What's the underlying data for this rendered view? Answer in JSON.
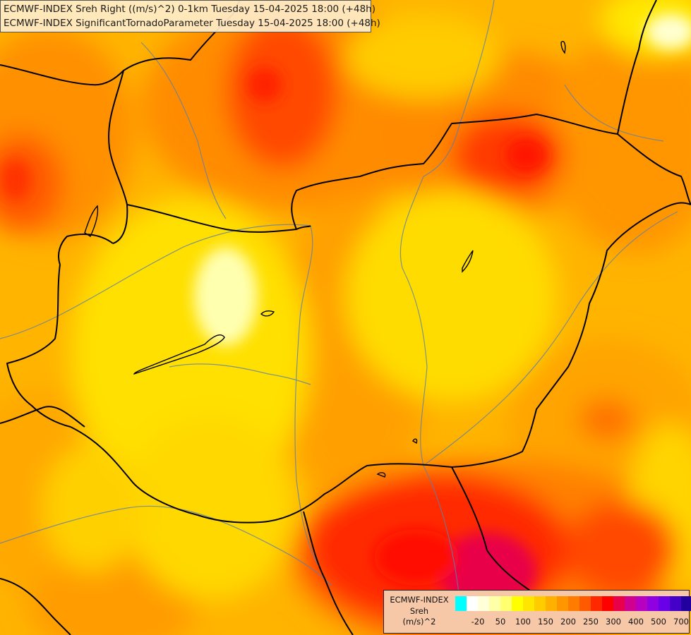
{
  "titles": {
    "line1": "ECMWF-INDEX Sreh Right ((m/s)^2) 0-1km Tuesday 15-04-2025 18:00 (+48h)",
    "line2": "ECMWF-INDEX SignificantTornadoParameter Tuesday 15-04-2025 18:00 (+48h)"
  },
  "legend": {
    "source": "ECMWF-INDEX",
    "parameter": "Sreh",
    "unit": "(m/s)^2",
    "colors": [
      "#00ffff",
      "#ffffff",
      "#ffffd8",
      "#ffffa8",
      "#ffff70",
      "#ffff00",
      "#ffe600",
      "#ffcc00",
      "#ffb000",
      "#ff9600",
      "#ff7c00",
      "#ff5a00",
      "#ff2800",
      "#ff0000",
      "#e8004a",
      "#d00090",
      "#b800c0",
      "#9000e0",
      "#6a00e8",
      "#4400c8",
      "#2200a0",
      "#000080"
    ],
    "ticks": [
      {
        "label": "-20",
        "index": 1
      },
      {
        "label": "50",
        "index": 3
      },
      {
        "label": "100",
        "index": 5
      },
      {
        "label": "150",
        "index": 7
      },
      {
        "label": "200",
        "index": 9
      },
      {
        "label": "250",
        "index": 11
      },
      {
        "label": "300",
        "index": 13
      },
      {
        "label": "400",
        "index": 15
      },
      {
        "label": "500",
        "index": 17
      },
      {
        "label": "700",
        "index": 19
      }
    ]
  }
}
